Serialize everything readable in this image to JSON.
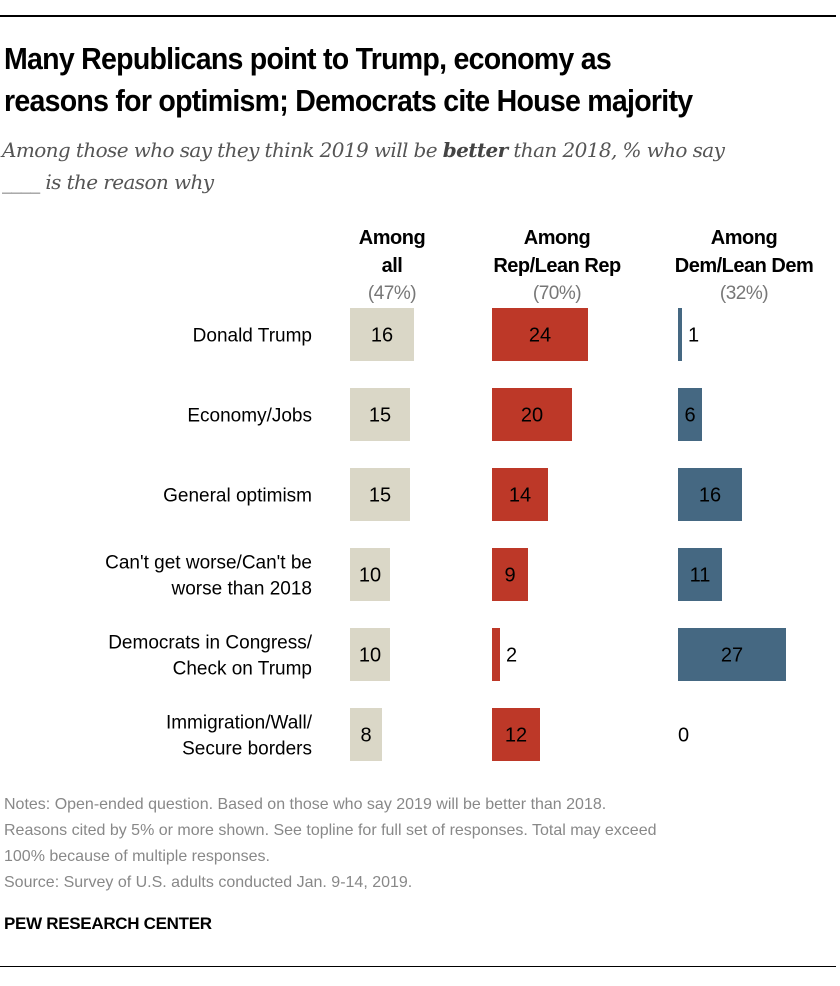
{
  "title_lines": [
    "Many Republicans point to Trump, economy as",
    "reasons for optimism; Democrats cite House majority"
  ],
  "subtitle": {
    "pre": "Among those who say they think 2019 will be ",
    "bold": "better",
    "post": " than 2018, % who say",
    "line2": "____ is the reason why"
  },
  "chart_data": {
    "type": "bar",
    "orientation": "horizontal",
    "categories": [
      "Donald Trump",
      "Economy/Jobs",
      "General optimism",
      "Can't get worse/Can't be worse than 2018",
      "Democrats in Congress/Check on Trump",
      "Immigration/Wall/Secure borders"
    ],
    "category_lines": [
      [
        "Donald Trump"
      ],
      [
        "Economy/Jobs"
      ],
      [
        "General optimism"
      ],
      [
        "Can't get worse/Can't be",
        "worse than 2018"
      ],
      [
        "Democrats in Congress/",
        "Check on Trump"
      ],
      [
        "Immigration/Wall/",
        "Secure borders"
      ]
    ],
    "series": [
      {
        "name": "Among all",
        "name_lines": [
          "Among",
          "all"
        ],
        "share": "(47%)",
        "color": "#dad7c7",
        "values": [
          16,
          15,
          15,
          10,
          10,
          8
        ]
      },
      {
        "name": "Among Rep/Lean Rep",
        "name_lines": [
          "Among",
          "Rep/Lean Rep"
        ],
        "share": "(70%)",
        "color": "#bd3828",
        "values": [
          24,
          20,
          14,
          9,
          2,
          12
        ]
      },
      {
        "name": "Among Dem/Lean Dem",
        "name_lines": [
          "Among",
          "Dem/Lean Dem"
        ],
        "share": "(32%)",
        "color": "#456882",
        "values": [
          1,
          6,
          16,
          11,
          27,
          0
        ]
      }
    ],
    "grid": false,
    "axes_visible": false
  },
  "notes": [
    "Notes: Open-ended question. Based on those who say 2019 will be better than 2018.",
    "Reasons cited by 5% or more shown. See topline for full set of responses. Total may exceed",
    "100% because of multiple responses.",
    "Source: Survey of U.S. adults conducted Jan. 9-14, 2019."
  ],
  "brand": "PEW RESEARCH CENTER"
}
